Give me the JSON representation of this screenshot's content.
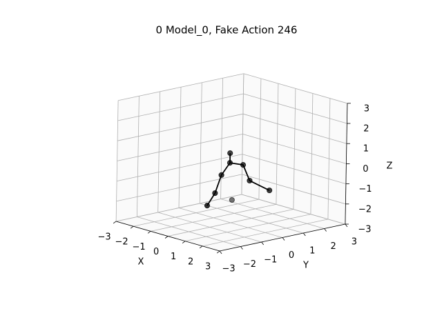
{
  "chart_data": {
    "type": "scatter3d",
    "title": "0 Model_0, Fake Action 246",
    "xlabel": "X",
    "ylabel": "Y",
    "zlabel": "Z",
    "xlim": [
      -3,
      3
    ],
    "ylim": [
      -3,
      3
    ],
    "zlim": [
      -3,
      3
    ],
    "xticks": [
      {
        "value": -3,
        "label": "−3"
      },
      {
        "value": -2,
        "label": "−2"
      },
      {
        "value": -1,
        "label": "−1"
      },
      0,
      1,
      2,
      3
    ],
    "yticks": [
      {
        "value": -3,
        "label": "−3"
      },
      {
        "value": -2,
        "label": "−2"
      },
      {
        "value": -1,
        "label": "−1"
      },
      0,
      1,
      2,
      3
    ],
    "zticks": [
      {
        "value": -3,
        "label": "−3"
      },
      {
        "value": -2,
        "label": "−2"
      },
      {
        "value": -1,
        "label": "−1"
      },
      0,
      1,
      2,
      3
    ],
    "grid": true,
    "color": "#000000",
    "points": {
      "x": [
        -0.1,
        -0.1,
        0.3,
        0.45,
        1.0,
        -0.22,
        -0.33,
        -0.41,
        -0.91
      ],
      "y": [
        0,
        0,
        0.3,
        0.5,
        1.0,
        -0.3,
        -0.5,
        -0.8,
        0.8
      ],
      "z": [
        0.43,
        -0.05,
        -0.12,
        -0.91,
        -1.37,
        -0.62,
        -1.5,
        -2.07,
        -2.27
      ]
    },
    "lines": [
      {
        "x": [
          -0.1,
          -0.1,
          0.3,
          0.45,
          1.0
        ],
        "y": [
          0,
          0,
          0.3,
          0.5,
          1.0
        ],
        "z": [
          0.43,
          -0.05,
          -0.12,
          -0.91,
          -1.37
        ]
      },
      {
        "x": [
          -0.1,
          -0.22,
          -0.33,
          -0.41
        ],
        "y": [
          0,
          -0.3,
          -0.5,
          -0.8
        ],
        "z": [
          -0.05,
          -0.62,
          -1.5,
          -2.07
        ]
      }
    ]
  }
}
